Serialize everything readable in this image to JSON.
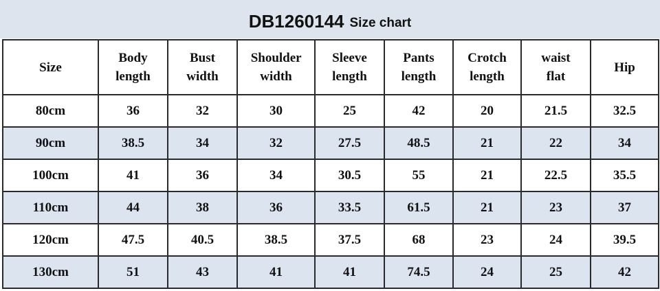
{
  "header": {
    "code": "DB1260144",
    "subtitle": "Size chart"
  },
  "table": {
    "columns": [
      "Size",
      "Body length",
      "Bust width",
      "Shoulder width",
      "Sleeve length",
      "Pants length",
      "Crotch length",
      "waist flat",
      "Hip"
    ],
    "rows": [
      [
        "80cm",
        36,
        32,
        30,
        25,
        42,
        20,
        21.5,
        32.5
      ],
      [
        "90cm",
        38.5,
        34,
        32,
        27.5,
        48.5,
        21,
        22,
        34
      ],
      [
        "100cm",
        41,
        36,
        34,
        30.5,
        55,
        21,
        22.5,
        35.5
      ],
      [
        "110cm",
        44,
        38,
        36,
        33.5,
        61.5,
        21,
        23,
        37
      ],
      [
        "120cm",
        47.5,
        40.5,
        38.5,
        37.5,
        68,
        23,
        24,
        39.5
      ],
      [
        "130cm",
        51,
        43,
        41,
        41,
        74.5,
        24,
        25,
        42
      ]
    ]
  }
}
